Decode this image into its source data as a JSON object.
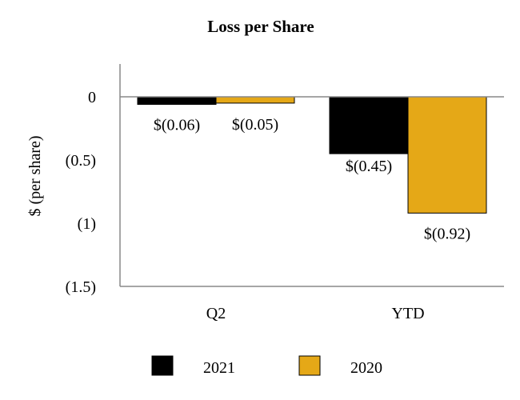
{
  "chart_data": {
    "type": "bar",
    "title": "Loss per Share",
    "ylabel": "$ (per share)",
    "xlabel": "",
    "categories": [
      "Q2",
      "YTD"
    ],
    "ylim": [
      -1.5,
      0.25
    ],
    "yticks": [
      0,
      -0.5,
      -1,
      -1.5
    ],
    "ytick_labels": [
      "0",
      "(0.5)",
      "(1)",
      "(1.5)"
    ],
    "series": [
      {
        "name": "2021",
        "values": [
          -0.06,
          -0.45
        ],
        "labels": [
          "$(0.06)",
          "$(0.45)"
        ],
        "color": "#000000"
      },
      {
        "name": "2020",
        "values": [
          -0.05,
          -0.92
        ],
        "labels": [
          "$(0.05)",
          "$(0.92)"
        ],
        "color": "#E5A817"
      }
    ],
    "grid": false,
    "legend_position": "bottom"
  }
}
